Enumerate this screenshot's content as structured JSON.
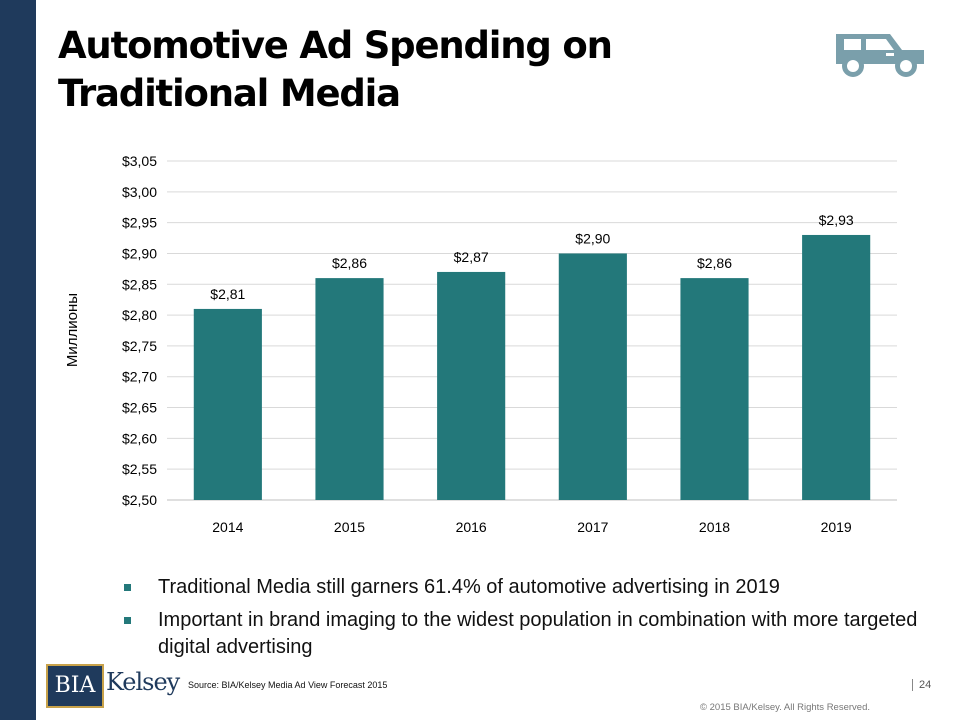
{
  "slide": {
    "title_lines": [
      "Automotive Ad Spending on",
      "Traditional Media"
    ],
    "source": "Source: BIA/Kelsey Media Ad View Forecast 2015",
    "page_number": "24",
    "copyright": "© 2015 BIA/Kelsey. All Rights Reserved.",
    "logo": {
      "part1": "BIA",
      "part2": "Kelsey"
    },
    "icons": {
      "header": "car-icon"
    },
    "colors": {
      "sidebar": "#1f3a5c",
      "bars": "#23787a",
      "bullet": "#23787a"
    }
  },
  "bullets": [
    "Traditional Media still garners 61.4% of automotive advertising in 2019",
    "Important in brand imaging to the widest population in combination with more targeted digital advertising"
  ],
  "chart_data": {
    "type": "bar",
    "categories": [
      "2014",
      "2015",
      "2016",
      "2017",
      "2018",
      "2019"
    ],
    "values": [
      2.81,
      2.86,
      2.87,
      2.9,
      2.86,
      2.93
    ],
    "data_labels": [
      "$2,81",
      "$2,86",
      "$2,87",
      "$2,90",
      "$2,86",
      "$2,93"
    ],
    "title": "",
    "xlabel": "",
    "ylabel": "Миллионы",
    "ylim": [
      2.5,
      3.05
    ],
    "yticks": [
      2.5,
      2.55,
      2.6,
      2.65,
      2.7,
      2.75,
      2.8,
      2.85,
      2.9,
      2.95,
      3.0,
      3.05
    ],
    "ytick_labels": [
      "$2,50",
      "$2,55",
      "$2,60",
      "$2,65",
      "$2,70",
      "$2,75",
      "$2,80",
      "$2,85",
      "$2,90",
      "$2,95",
      "$3,00",
      "$3,05"
    ],
    "grid": true,
    "legend": "none",
    "bar_color": "#23787a"
  }
}
